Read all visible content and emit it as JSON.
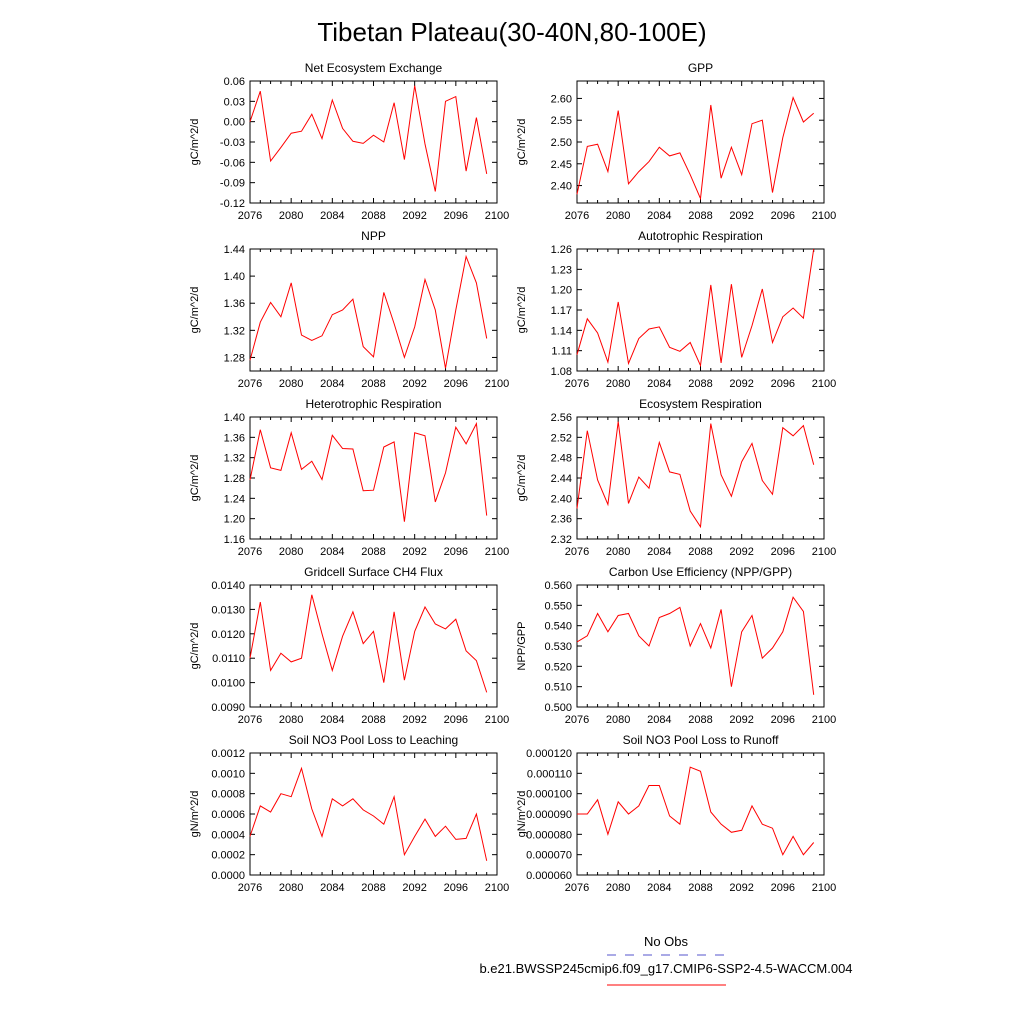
{
  "title": "Tibetan Plateau(30-40N,80-100E)",
  "legend": {
    "entries": [
      {
        "label": "No Obs",
        "color": "#5555cc",
        "style": "dashed"
      },
      {
        "label": "b.e21.BWSSP245cmip6.f09_g17.CMIP6-SSP2-4.5-WACCM.004",
        "color": "#ff0000",
        "style": "solid"
      }
    ]
  },
  "chart_data": [
    {
      "type": "line",
      "title": "Net Ecosystem Exchange",
      "ylabel": "gC/m^2/d",
      "xlim": [
        2076,
        2100
      ],
      "x_ticks": [
        2076,
        2080,
        2084,
        2088,
        2092,
        2096,
        2100
      ],
      "ylim": [
        -0.12,
        0.06
      ],
      "y_ticks": [
        "0.06",
        "0.03",
        "0.00",
        "-0.03",
        "-0.06",
        "-0.09",
        "-0.12"
      ],
      "series": [
        {
          "color": "#ff0000",
          "x": [
            2076,
            2077,
            2078,
            2079,
            2080,
            2081,
            2082,
            2083,
            2084,
            2085,
            2086,
            2087,
            2088,
            2089,
            2090,
            2091,
            2092,
            2093,
            2094,
            2095,
            2096,
            2097,
            2098,
            2099
          ],
          "values": [
            0.0,
            0.045,
            -0.058,
            -0.038,
            -0.017,
            -0.014,
            0.011,
            -0.025,
            0.032,
            -0.01,
            -0.029,
            -0.032,
            -0.02,
            -0.03,
            0.028,
            -0.056,
            0.053,
            -0.033,
            -0.103,
            0.03,
            0.037,
            -0.073,
            0.006,
            -0.077
          ]
        }
      ]
    },
    {
      "type": "line",
      "title": "GPP",
      "ylabel": "gC/m^2/d",
      "xlim": [
        2076,
        2100
      ],
      "x_ticks": [
        2076,
        2080,
        2084,
        2088,
        2092,
        2096,
        2100
      ],
      "ylim": [
        2.36,
        2.64
      ],
      "y_ticks": [
        "2.60",
        "2.55",
        "2.50",
        "2.45",
        "2.40"
      ],
      "series": [
        {
          "color": "#ff0000",
          "x": [
            2076,
            2077,
            2078,
            2079,
            2080,
            2081,
            2082,
            2083,
            2084,
            2085,
            2086,
            2087,
            2088,
            2089,
            2090,
            2091,
            2092,
            2093,
            2094,
            2095,
            2096,
            2097,
            2098,
            2099
          ],
          "values": [
            2.38,
            2.49,
            2.495,
            2.432,
            2.572,
            2.404,
            2.432,
            2.455,
            2.488,
            2.468,
            2.475,
            2.425,
            2.37,
            2.585,
            2.417,
            2.488,
            2.425,
            2.542,
            2.55,
            2.384,
            2.51,
            2.602,
            2.546,
            2.566
          ]
        }
      ]
    },
    {
      "type": "line",
      "title": "NPP",
      "ylabel": "gC/m^2/d",
      "xlim": [
        2076,
        2100
      ],
      "x_ticks": [
        2076,
        2080,
        2084,
        2088,
        2092,
        2096,
        2100
      ],
      "ylim": [
        1.26,
        1.44
      ],
      "y_ticks": [
        "1.44",
        "1.40",
        "1.36",
        "1.32",
        "1.28"
      ],
      "series": [
        {
          "color": "#ff0000",
          "x": [
            2076,
            2077,
            2078,
            2079,
            2080,
            2081,
            2082,
            2083,
            2084,
            2085,
            2086,
            2087,
            2088,
            2089,
            2090,
            2091,
            2092,
            2093,
            2094,
            2095,
            2096,
            2097,
            2098,
            2099
          ],
          "values": [
            1.276,
            1.332,
            1.361,
            1.34,
            1.39,
            1.313,
            1.305,
            1.312,
            1.343,
            1.35,
            1.366,
            1.296,
            1.281,
            1.376,
            1.33,
            1.28,
            1.325,
            1.395,
            1.35,
            1.264,
            1.35,
            1.429,
            1.39,
            1.308
          ]
        }
      ]
    },
    {
      "type": "line",
      "title": "Autotrophic Respiration",
      "ylabel": "gC/m^2/d",
      "xlim": [
        2076,
        2100
      ],
      "x_ticks": [
        2076,
        2080,
        2084,
        2088,
        2092,
        2096,
        2100
      ],
      "ylim": [
        1.08,
        1.26
      ],
      "y_ticks": [
        "1.26",
        "1.23",
        "1.20",
        "1.17",
        "1.14",
        "1.11",
        "1.08"
      ],
      "series": [
        {
          "color": "#ff0000",
          "x": [
            2076,
            2077,
            2078,
            2079,
            2080,
            2081,
            2082,
            2083,
            2084,
            2085,
            2086,
            2087,
            2088,
            2089,
            2090,
            2091,
            2092,
            2093,
            2094,
            2095,
            2096,
            2097,
            2098,
            2099
          ],
          "values": [
            1.104,
            1.157,
            1.136,
            1.093,
            1.182,
            1.091,
            1.128,
            1.142,
            1.145,
            1.115,
            1.109,
            1.122,
            1.088,
            1.207,
            1.092,
            1.208,
            1.1,
            1.147,
            1.201,
            1.122,
            1.16,
            1.173,
            1.158,
            1.26
          ]
        }
      ]
    },
    {
      "type": "line",
      "title": "Heterotrophic Respiration",
      "ylabel": "gC/m^2/d",
      "xlim": [
        2076,
        2100
      ],
      "x_ticks": [
        2076,
        2080,
        2084,
        2088,
        2092,
        2096,
        2100
      ],
      "ylim": [
        1.16,
        1.4
      ],
      "y_ticks": [
        "1.40",
        "1.36",
        "1.32",
        "1.28",
        "1.24",
        "1.20",
        "1.16"
      ],
      "series": [
        {
          "color": "#ff0000",
          "x": [
            2076,
            2077,
            2078,
            2079,
            2080,
            2081,
            2082,
            2083,
            2084,
            2085,
            2086,
            2087,
            2088,
            2089,
            2090,
            2091,
            2092,
            2093,
            2094,
            2095,
            2096,
            2097,
            2098,
            2099
          ],
          "values": [
            1.276,
            1.375,
            1.3,
            1.295,
            1.369,
            1.297,
            1.313,
            1.277,
            1.364,
            1.338,
            1.337,
            1.255,
            1.256,
            1.341,
            1.351,
            1.194,
            1.369,
            1.363,
            1.233,
            1.29,
            1.38,
            1.347,
            1.387,
            1.206
          ]
        }
      ]
    },
    {
      "type": "line",
      "title": "Ecosystem Respiration",
      "ylabel": "gC/m^2/d",
      "xlim": [
        2076,
        2100
      ],
      "x_ticks": [
        2076,
        2080,
        2084,
        2088,
        2092,
        2096,
        2100
      ],
      "ylim": [
        2.32,
        2.56
      ],
      "y_ticks": [
        "2.56",
        "2.52",
        "2.48",
        "2.44",
        "2.40",
        "2.36",
        "2.32"
      ],
      "series": [
        {
          "color": "#ff0000",
          "x": [
            2076,
            2077,
            2078,
            2079,
            2080,
            2081,
            2082,
            2083,
            2084,
            2085,
            2086,
            2087,
            2088,
            2089,
            2090,
            2091,
            2092,
            2093,
            2094,
            2095,
            2096,
            2097,
            2098,
            2099
          ],
          "values": [
            2.38,
            2.533,
            2.436,
            2.388,
            2.551,
            2.39,
            2.442,
            2.42,
            2.51,
            2.452,
            2.447,
            2.375,
            2.344,
            2.547,
            2.446,
            2.404,
            2.472,
            2.508,
            2.435,
            2.408,
            2.539,
            2.523,
            2.543,
            2.466
          ]
        }
      ]
    },
    {
      "type": "line",
      "title": "Gridcell Surface CH4 Flux",
      "ylabel": "gC/m^2/d",
      "xlim": [
        2076,
        2100
      ],
      "x_ticks": [
        2076,
        2080,
        2084,
        2088,
        2092,
        2096,
        2100
      ],
      "ylim": [
        0.009,
        0.014
      ],
      "y_ticks": [
        "0.0140",
        "0.0130",
        "0.0120",
        "0.0110",
        "0.0100",
        "0.0090"
      ],
      "series": [
        {
          "color": "#ff0000",
          "x": [
            2076,
            2077,
            2078,
            2079,
            2080,
            2081,
            2082,
            2083,
            2084,
            2085,
            2086,
            2087,
            2088,
            2089,
            2090,
            2091,
            2092,
            2093,
            2094,
            2095,
            2096,
            2097,
            2098,
            2099
          ],
          "values": [
            0.011,
            0.0133,
            0.0105,
            0.0112,
            0.01085,
            0.011,
            0.0136,
            0.012,
            0.0105,
            0.0119,
            0.0129,
            0.0116,
            0.0121,
            0.01,
            0.0129,
            0.0101,
            0.0121,
            0.0131,
            0.0124,
            0.0122,
            0.0126,
            0.0113,
            0.0109,
            0.0096
          ]
        }
      ]
    },
    {
      "type": "line",
      "title": "Carbon Use Efficiency (NPP/GPP)",
      "ylabel": "NPP/GPP",
      "xlim": [
        2076,
        2100
      ],
      "x_ticks": [
        2076,
        2080,
        2084,
        2088,
        2092,
        2096,
        2100
      ],
      "ylim": [
        0.5,
        0.56
      ],
      "y_ticks": [
        "0.560",
        "0.550",
        "0.540",
        "0.530",
        "0.520",
        "0.510",
        "0.500"
      ],
      "series": [
        {
          "color": "#ff0000",
          "x": [
            2076,
            2077,
            2078,
            2079,
            2080,
            2081,
            2082,
            2083,
            2084,
            2085,
            2086,
            2087,
            2088,
            2089,
            2090,
            2091,
            2092,
            2093,
            2094,
            2095,
            2096,
            2097,
            2098,
            2099
          ],
          "values": [
            0.532,
            0.535,
            0.546,
            0.537,
            0.545,
            0.546,
            0.535,
            0.53,
            0.544,
            0.546,
            0.549,
            0.53,
            0.541,
            0.529,
            0.548,
            0.51,
            0.537,
            0.545,
            0.524,
            0.529,
            0.537,
            0.554,
            0.547,
            0.506
          ]
        }
      ]
    },
    {
      "type": "line",
      "title": "Soil NO3 Pool Loss to Leaching",
      "ylabel": "gN/m^2/d",
      "xlim": [
        2076,
        2100
      ],
      "x_ticks": [
        2076,
        2080,
        2084,
        2088,
        2092,
        2096,
        2100
      ],
      "ylim": [
        0.0,
        0.0012
      ],
      "y_ticks": [
        "0.0012",
        "0.0010",
        "0.0008",
        "0.0006",
        "0.0004",
        "0.0002",
        "0.0000"
      ],
      "series": [
        {
          "color": "#ff0000",
          "x": [
            2076,
            2077,
            2078,
            2079,
            2080,
            2081,
            2082,
            2083,
            2084,
            2085,
            2086,
            2087,
            2088,
            2089,
            2090,
            2091,
            2092,
            2093,
            2094,
            2095,
            2096,
            2097,
            2098,
            2099
          ],
          "values": [
            0.00038,
            0.00068,
            0.00062,
            0.0008,
            0.00077,
            0.00105,
            0.00065,
            0.00038,
            0.00075,
            0.00068,
            0.00075,
            0.00064,
            0.00058,
            0.0005,
            0.00077,
            0.0002,
            0.00038,
            0.00055,
            0.00038,
            0.00048,
            0.00035,
            0.00036,
            0.0006,
            0.00014
          ]
        }
      ]
    },
    {
      "type": "line",
      "title": "Soil NO3 Pool Loss to Runoff",
      "ylabel": "gN/m^2/d",
      "xlim": [
        2076,
        2100
      ],
      "x_ticks": [
        2076,
        2080,
        2084,
        2088,
        2092,
        2096,
        2100
      ],
      "ylim": [
        6e-05,
        0.00012
      ],
      "y_ticks": [
        "0.000120",
        "0.000110",
        "0.000100",
        "0.000090",
        "0.000080",
        "0.000070",
        "0.000060"
      ],
      "series": [
        {
          "color": "#ff0000",
          "x": [
            2076,
            2077,
            2078,
            2079,
            2080,
            2081,
            2082,
            2083,
            2084,
            2085,
            2086,
            2087,
            2088,
            2089,
            2090,
            2091,
            2092,
            2093,
            2094,
            2095,
            2096,
            2097,
            2098,
            2099
          ],
          "values": [
            9e-05,
            9e-05,
            9.7e-05,
            8e-05,
            9.6e-05,
            9e-05,
            9.4e-05,
            0.000104,
            0.000104,
            8.9e-05,
            8.5e-05,
            0.000113,
            0.000111,
            9.1e-05,
            8.5e-05,
            8.1e-05,
            8.2e-05,
            9.4e-05,
            8.5e-05,
            8.3e-05,
            7e-05,
            7.9e-05,
            7e-05,
            7.6e-05
          ]
        }
      ]
    }
  ]
}
